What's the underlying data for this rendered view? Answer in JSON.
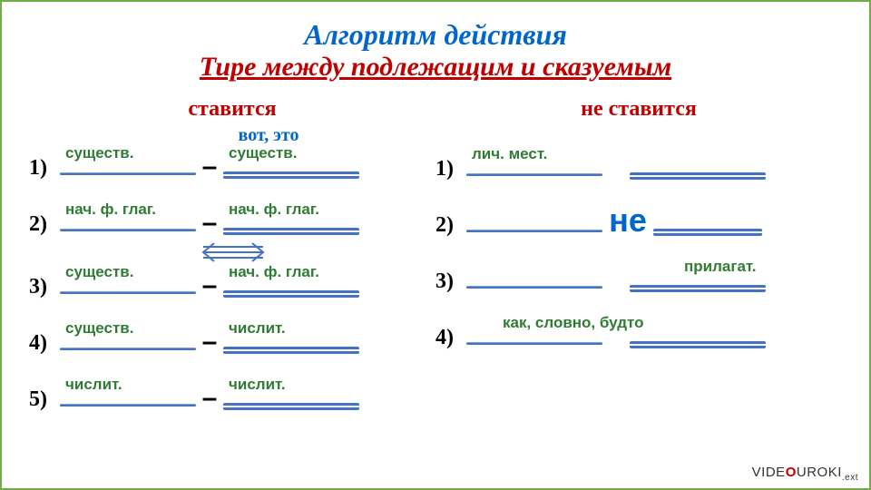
{
  "colors": {
    "blue": "#0066cc",
    "red": "#c00000",
    "green": "#2e7d32",
    "line": "#4472c4",
    "black": "#000000",
    "border": "#70ad47"
  },
  "fontsizes": {
    "main_title": 32,
    "sub_title": 30,
    "col_header": 24,
    "vot_eto": 20,
    "label": 17,
    "row_num": 24,
    "ne": 36
  },
  "title": "Алгоритм действия",
  "subtitle": "Тире между подлежащим и сказуемым",
  "left": {
    "header": "ставится",
    "vot_eto": "вот, это",
    "rows": [
      {
        "n": "1)",
        "l": "существ.",
        "r": "существ.",
        "lt": "single",
        "rt": "double",
        "sep": "dash"
      },
      {
        "n": "2)",
        "l": "нач. ф. глаг.",
        "r": "нач. ф. глаг.",
        "lt": "single",
        "rt": "double",
        "sep": "dash"
      },
      {
        "n": "3)",
        "l": "существ.",
        "r": "нач. ф. глаг.",
        "lt": "single",
        "rt": "double",
        "sep": "dash"
      },
      {
        "n": "4)",
        "l": "существ.",
        "r": "числит.",
        "lt": "single",
        "rt": "double",
        "sep": "dash"
      },
      {
        "n": "5)",
        "l": "числит.",
        "r": "числит.",
        "lt": "single",
        "rt": "double",
        "sep": "dash"
      }
    ]
  },
  "right": {
    "header": "не ставится",
    "rows": [
      {
        "n": "1)",
        "l": "лич. мест.",
        "r": "",
        "lt": "single",
        "rt": "double",
        "sep": "gap"
      },
      {
        "n": "2)",
        "l": "",
        "r": "",
        "lt": "single",
        "rt": "double",
        "sep": "ne",
        "ne": "не"
      },
      {
        "n": "3)",
        "l": "",
        "r": "прилагат.",
        "lt": "single",
        "rt": "double",
        "sep": "gap"
      },
      {
        "n": "4)",
        "l": "как, словно, будто",
        "l_shift": true,
        "r": "",
        "lt": "single",
        "rt": "double",
        "sep": "gap"
      }
    ]
  },
  "darrow_between_left_rows": [
    2,
    3
  ],
  "logo": {
    "pre": "VIDE",
    "o": "O",
    "post": "UROKI",
    "net": ".ext"
  }
}
